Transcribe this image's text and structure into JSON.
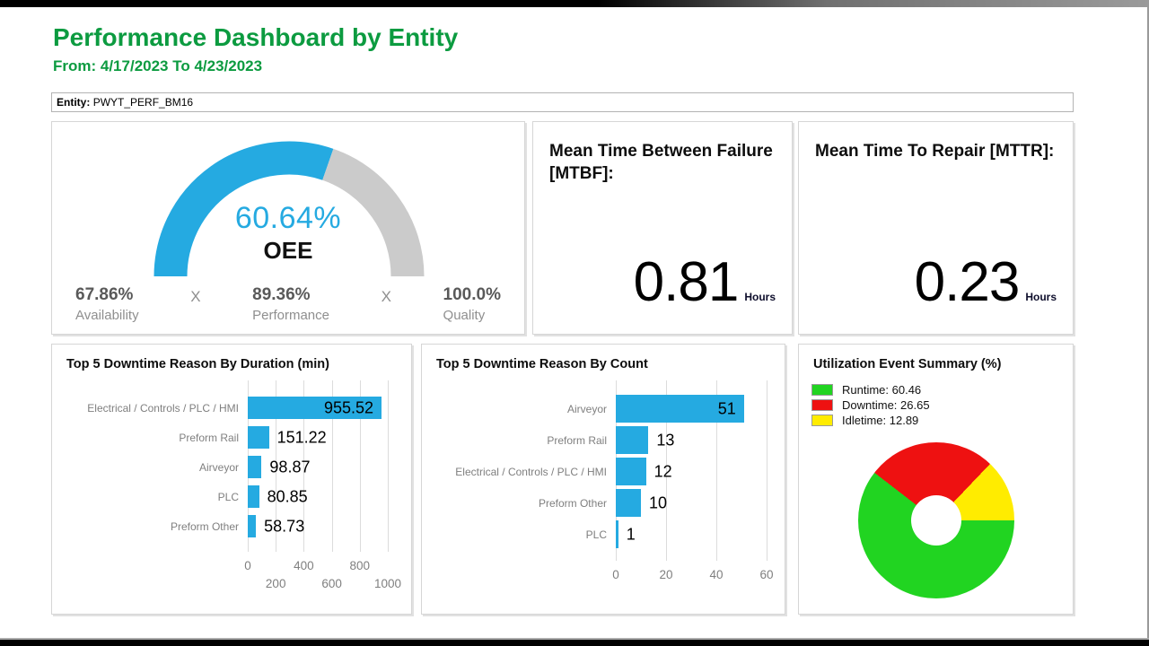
{
  "page": {
    "title": "Performance Dashboard by Entity",
    "subtitle": "From: 4/17/2023 To 4/23/2023",
    "entity": {
      "label": "Entity:",
      "value": "PWYT_PERF_BM16"
    }
  },
  "kpis": {
    "mtbf": {
      "title": "Mean Time Between Failure [MTBF]:",
      "value": "0.81",
      "unit": "Hours"
    },
    "mttr": {
      "title": "Mean Time To Repair [MTTR]:",
      "value": "0.23",
      "unit": "Hours"
    }
  },
  "colors": {
    "heading_green": "#0c9b40",
    "gauge_blue": "#25aae1",
    "gauge_track": "#cbcbcb",
    "bar_blue": "#25aae1",
    "runtime_green": "#21d421",
    "downtime_red": "#ee1111",
    "idletime_yellow": "#ffec00"
  },
  "chart_data": [
    {
      "type": "gauge",
      "id": "oee",
      "title": "OEE",
      "value": 60.64,
      "min": 0,
      "max": 100,
      "value_label": "60.64%",
      "center_label": "OEE",
      "separator": "X",
      "components": [
        {
          "value": "67.86%",
          "label": "Availability"
        },
        {
          "value": "89.36%",
          "label": "Performance"
        },
        {
          "value": "100.0%",
          "label": "Quality"
        }
      ]
    },
    {
      "type": "bar",
      "id": "downtime_duration",
      "orientation": "horizontal",
      "title": "Top 5 Downtime Reason By Duration (min)",
      "categories": [
        "Electrical / Controls / PLC / HMI",
        "Preform Rail",
        "Airveyor",
        "PLC",
        "Preform Other"
      ],
      "values": [
        955.52,
        151.22,
        98.87,
        80.85,
        58.73
      ],
      "value_labels": [
        "955.52",
        "151.22",
        "98.87",
        "80.85",
        "58.73"
      ],
      "xlim": [
        0,
        1000
      ],
      "xticks": [
        0,
        200,
        400,
        600,
        800,
        1000
      ],
      "tick_stagger": true,
      "grid": true,
      "bar_color": "#25aae1"
    },
    {
      "type": "bar",
      "id": "downtime_count",
      "orientation": "horizontal",
      "title": "Top 5 Downtime Reason By Count",
      "categories": [
        "Airveyor",
        "Preform Rail",
        "Electrical / Controls / PLC / HMI",
        "Preform Other",
        "PLC"
      ],
      "values": [
        51,
        13,
        12,
        10,
        1
      ],
      "value_labels": [
        "51",
        "13",
        "12",
        "10",
        "1"
      ],
      "xlim": [
        0,
        60
      ],
      "xticks": [
        0,
        20,
        40,
        60
      ],
      "tick_stagger": false,
      "grid": true,
      "bar_color": "#25aae1"
    },
    {
      "type": "pie",
      "id": "utilization",
      "title": "Utilization Event Summary (%)",
      "donut": true,
      "start_angle_deg": 90,
      "clockwise": true,
      "labels": [
        "Runtime",
        "Downtime",
        "Idletime"
      ],
      "values": [
        60.46,
        26.65,
        12.89
      ],
      "legend": [
        "Runtime: 60.46",
        "Downtime: 26.65",
        "Idletime: 12.89"
      ],
      "colors": [
        "#21d421",
        "#ee1111",
        "#ffec00"
      ],
      "legend_position": "top-left"
    }
  ]
}
